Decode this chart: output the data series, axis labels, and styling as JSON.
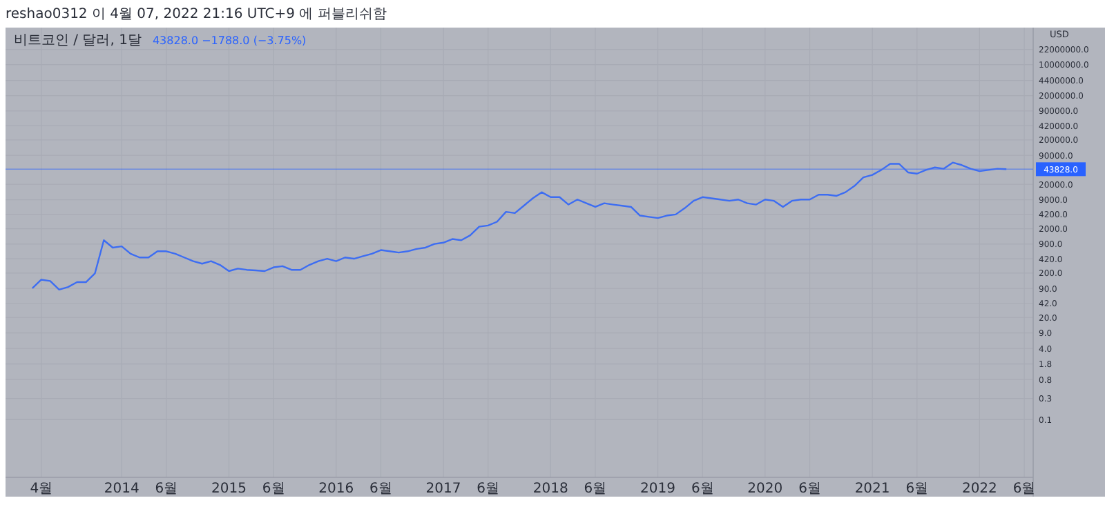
{
  "chart_data": {
    "type": "line",
    "title": "비트코인 / 달러, 1달",
    "ylabel": "USD",
    "annotations": [
      "reshao0312 이 4월 07, 2022 21:16 UTC+9 에 퍼블리쉬함",
      "43828.0 −1788.0 (−3.75%)"
    ],
    "log": "y",
    "grid": true,
    "x": [
      "2013-03",
      "2013-04",
      "2013-05",
      "2013-06",
      "2013-07",
      "2013-08",
      "2013-09",
      "2013-10",
      "2013-11",
      "2013-12",
      "2014-01",
      "2014-02",
      "2014-03",
      "2014-04",
      "2014-05",
      "2014-06",
      "2014-07",
      "2014-08",
      "2014-09",
      "2014-10",
      "2014-11",
      "2014-12",
      "2015-01",
      "2015-02",
      "2015-03",
      "2015-04",
      "2015-05",
      "2015-06",
      "2015-07",
      "2015-08",
      "2015-09",
      "2015-10",
      "2015-11",
      "2015-12",
      "2016-01",
      "2016-02",
      "2016-03",
      "2016-04",
      "2016-05",
      "2016-06",
      "2016-07",
      "2016-08",
      "2016-09",
      "2016-10",
      "2016-11",
      "2016-12",
      "2017-01",
      "2017-02",
      "2017-03",
      "2017-04",
      "2017-05",
      "2017-06",
      "2017-07",
      "2017-08",
      "2017-09",
      "2017-10",
      "2017-11",
      "2017-12",
      "2018-01",
      "2018-02",
      "2018-03",
      "2018-04",
      "2018-05",
      "2018-06",
      "2018-07",
      "2018-08",
      "2018-09",
      "2018-10",
      "2018-11",
      "2018-12",
      "2019-01",
      "2019-02",
      "2019-03",
      "2019-04",
      "2019-05",
      "2019-06",
      "2019-07",
      "2019-08",
      "2019-09",
      "2019-10",
      "2019-11",
      "2019-12",
      "2020-01",
      "2020-02",
      "2020-03",
      "2020-04",
      "2020-05",
      "2020-06",
      "2020-07",
      "2020-08",
      "2020-09",
      "2020-10",
      "2020-11",
      "2020-12",
      "2021-01",
      "2021-02",
      "2021-03",
      "2021-04",
      "2021-05",
      "2021-06",
      "2021-07",
      "2021-08",
      "2021-09",
      "2021-10",
      "2021-11",
      "2021-12",
      "2022-01",
      "2022-02",
      "2022-03",
      "2022-04"
    ],
    "series": [
      {
        "color": "#3d6df2",
        "values": [
          91,
          142,
          133,
          85,
          97,
          125,
          125,
          196,
          1100,
          750,
          800,
          545,
          450,
          450,
          620,
          620,
          545,
          450,
          371,
          326,
          371,
          306,
          222,
          253,
          237,
          230,
          222,
          270,
          287,
          237,
          237,
          306,
          371,
          422,
          371,
          450,
          422,
          480,
          545,
          660,
          620,
          580,
          620,
          700,
          750,
          910,
          970,
          1170,
          1100,
          1420,
          2220,
          2370,
          2870,
          4800,
          4500,
          6600,
          9700,
          13300,
          10300,
          10300,
          7000,
          9100,
          7500,
          6200,
          7500,
          7000,
          6600,
          6200,
          3950,
          3700,
          3480,
          3950,
          4200,
          5800,
          8500,
          10300,
          9700,
          9100,
          8500,
          9100,
          7500,
          7000,
          9100,
          8500,
          6200,
          8500,
          9100,
          9100,
          11700,
          11700,
          11000,
          13300,
          18400,
          28700,
          32600,
          42200,
          58000,
          58000,
          37100,
          34800,
          42200,
          48000,
          45000,
          61900,
          54400,
          45000,
          39600,
          42200,
          45000,
          43828
        ]
      }
    ],
    "xlim": [
      "2012-12",
      "2022-07"
    ],
    "xticks": [
      {
        "value": "2013-04",
        "label": "4월"
      },
      {
        "value": "2014-01",
        "label": "2014"
      },
      {
        "value": "2014-06",
        "label": "6월"
      },
      {
        "value": "2015-01",
        "label": "2015"
      },
      {
        "value": "2015-06",
        "label": "6월"
      },
      {
        "value": "2016-01",
        "label": "2016"
      },
      {
        "value": "2016-06",
        "label": "6월"
      },
      {
        "value": "2017-01",
        "label": "2017"
      },
      {
        "value": "2017-06",
        "label": "6월"
      },
      {
        "value": "2018-01",
        "label": "2018"
      },
      {
        "value": "2018-06",
        "label": "6월"
      },
      {
        "value": "2019-01",
        "label": "2019"
      },
      {
        "value": "2019-06",
        "label": "6월"
      },
      {
        "value": "2020-01",
        "label": "2020"
      },
      {
        "value": "2020-06",
        "label": "6월"
      },
      {
        "value": "2021-01",
        "label": "2021"
      },
      {
        "value": "2021-06",
        "label": "6월"
      },
      {
        "value": "2022-01",
        "label": "2022"
      },
      {
        "value": "2022-06",
        "label": "6월"
      }
    ],
    "ylim": [
      0.005,
      25000000
    ],
    "yticks": [
      {
        "value": 0.1,
        "label": "0.1"
      },
      {
        "value": 0.3,
        "label": "0.3"
      },
      {
        "value": 0.8,
        "label": "0.8"
      },
      {
        "value": 1.8,
        "label": "1.8"
      },
      {
        "value": 4,
        "label": "4.0"
      },
      {
        "value": 9,
        "label": "9.0"
      },
      {
        "value": 20,
        "label": "20.0"
      },
      {
        "value": 42,
        "label": "42.0"
      },
      {
        "value": 90,
        "label": "90.0"
      },
      {
        "value": 200,
        "label": "200.0"
      },
      {
        "value": 420,
        "label": "420.0"
      },
      {
        "value": 900,
        "label": "900.0"
      },
      {
        "value": 2000,
        "label": "2000.0"
      },
      {
        "value": 4200,
        "label": "4200.0"
      },
      {
        "value": 9000,
        "label": "9000.0"
      },
      {
        "value": 20000,
        "label": "20000.0"
      },
      {
        "value": 90000,
        "label": "90000.0"
      },
      {
        "value": 200000,
        "label": "200000.0"
      },
      {
        "value": 420000,
        "label": "420000.0"
      },
      {
        "value": 900000,
        "label": "900000.0"
      },
      {
        "value": 2000000,
        "label": "2000000.0"
      },
      {
        "value": 4400000,
        "label": "4400000.0"
      },
      {
        "value": 10000000,
        "label": "10000000.0"
      },
      {
        "value": 22000000,
        "label": "22000000.0"
      }
    ],
    "ref_lines": [
      {
        "axis": "y",
        "value": 43828,
        "label": "43828.0",
        "color": "#2962ff"
      }
    ]
  }
}
